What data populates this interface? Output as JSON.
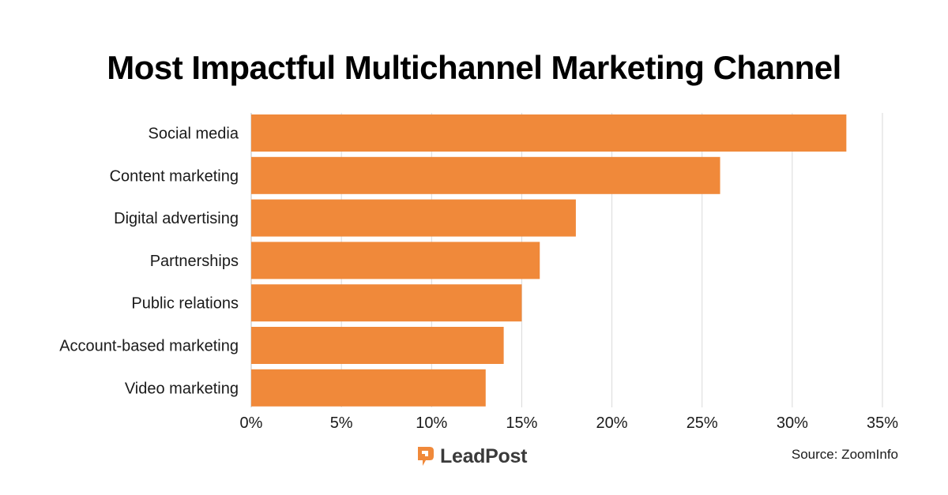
{
  "chart_data": {
    "type": "bar",
    "orientation": "horizontal",
    "title": "Most Impactful Multichannel Marketing Channel",
    "categories": [
      "Social media",
      "Content marketing",
      "Digital advertising",
      "Partnerships",
      "Public relations",
      "Account-based marketing",
      "Video marketing"
    ],
    "values": [
      33,
      26,
      18,
      16,
      15,
      14,
      13
    ],
    "xlim": [
      0,
      35
    ],
    "xticks": [
      0,
      5,
      10,
      15,
      20,
      25,
      30,
      35
    ],
    "xtick_labels": [
      "0%",
      "5%",
      "10%",
      "15%",
      "20%",
      "25%",
      "30%",
      "35%"
    ],
    "xlabel": "",
    "ylabel": "",
    "grid": "vertical",
    "bar_color": "#F0893A",
    "grid_color": "#D9D9D9"
  },
  "footer": {
    "logo_text": "LeadPost",
    "logo_mark_color": "#F0893A",
    "logo_text_color": "#3a3a3a",
    "source": "Source: ZoomInfo"
  }
}
